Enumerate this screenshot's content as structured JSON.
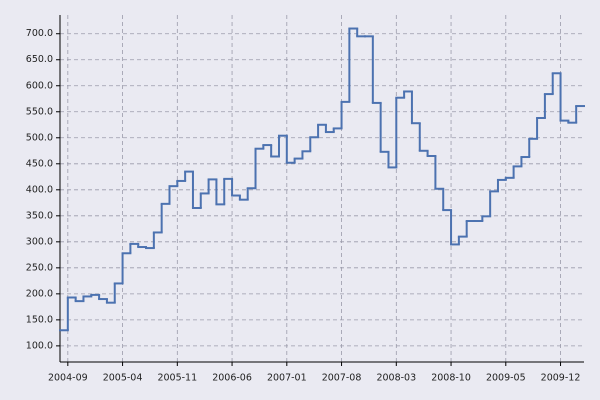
{
  "chart_data": {
    "type": "step",
    "x": [
      "2004-08",
      "2004-09",
      "2004-10",
      "2004-11",
      "2004-12",
      "2005-01",
      "2005-02",
      "2005-03",
      "2005-04",
      "2005-05",
      "2005-06",
      "2005-07",
      "2005-08",
      "2005-09",
      "2005-10",
      "2005-11",
      "2005-12",
      "2006-01",
      "2006-02",
      "2006-03",
      "2006-04",
      "2006-05",
      "2006-06",
      "2006-07",
      "2006-08",
      "2006-09",
      "2006-10",
      "2006-11",
      "2006-12",
      "2007-01",
      "2007-02",
      "2007-03",
      "2007-04",
      "2007-05",
      "2007-06",
      "2007-07",
      "2007-08",
      "2007-09",
      "2007-10",
      "2007-11",
      "2007-12",
      "2008-01",
      "2008-02",
      "2008-03",
      "2008-04",
      "2008-05",
      "2008-06",
      "2008-07",
      "2008-08",
      "2008-09",
      "2008-10",
      "2008-11",
      "2008-12",
      "2009-01",
      "2009-02",
      "2009-03",
      "2009-04",
      "2009-05",
      "2009-06",
      "2009-07",
      "2009-08",
      "2009-09",
      "2009-10",
      "2009-11",
      "2009-12",
      "2010-01",
      "2010-02"
    ],
    "values": [
      130,
      193,
      186,
      195,
      198,
      190,
      183,
      220,
      278,
      296,
      290,
      288,
      318,
      373,
      407,
      417,
      435,
      365,
      393,
      420,
      372,
      421,
      389,
      381,
      403,
      479,
      486,
      464,
      504,
      452,
      460,
      474,
      501,
      525,
      511,
      518,
      569,
      710,
      695,
      695,
      567,
      473,
      443,
      577,
      589,
      528,
      475,
      465,
      402,
      361,
      295,
      310,
      340,
      340,
      349,
      397,
      419,
      423,
      445,
      463,
      498,
      538,
      584,
      624,
      533,
      529,
      561
    ],
    "color": "#4c72b0",
    "xlim": [
      "2004-08",
      "2010-03"
    ],
    "xticks": [
      "2004-09",
      "2005-04",
      "2005-11",
      "2006-06",
      "2007-01",
      "2007-08",
      "2008-03",
      "2008-10",
      "2009-05",
      "2009-12"
    ],
    "ylim": [
      69,
      736
    ],
    "yticks": [
      {
        "value": 100,
        "label": "100.0"
      },
      {
        "value": 150,
        "label": "150.0"
      },
      {
        "value": 200,
        "label": "200.0"
      },
      {
        "value": 250,
        "label": "250.0"
      },
      {
        "value": 300,
        "label": "300.0"
      },
      {
        "value": 350,
        "label": "350.0"
      },
      {
        "value": 400,
        "label": "400.0"
      },
      {
        "value": 450,
        "label": "450.0"
      },
      {
        "value": 500,
        "label": "500.0"
      },
      {
        "value": 550,
        "label": "550.0"
      },
      {
        "value": 600,
        "label": "600.0"
      },
      {
        "value": 650,
        "label": "650.0"
      },
      {
        "value": 700,
        "label": "700.0"
      }
    ],
    "grid": true
  }
}
